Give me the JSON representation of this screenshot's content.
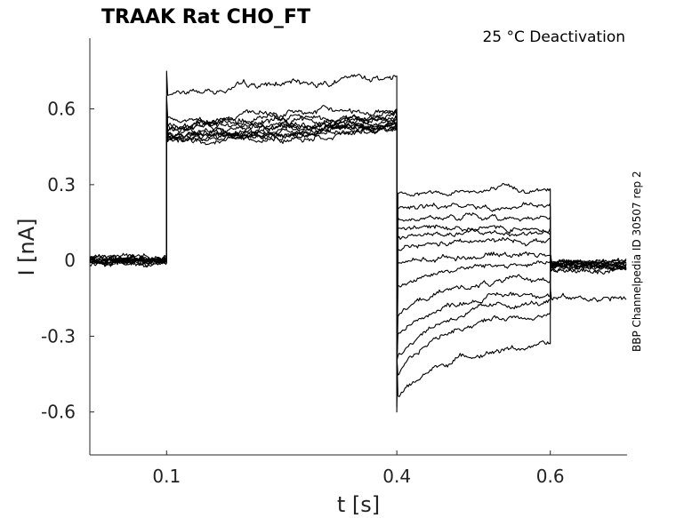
{
  "chart_data": {
    "type": "line",
    "title": "TRAAK  Rat  CHO_FT",
    "annotation": "25 °C  Deactivation",
    "side_label": "BBP Channelpedia ID 30507 rep 2",
    "xlabel": "t [s]",
    "ylabel": "I [nA]",
    "xlim": [
      0.0,
      0.7
    ],
    "ylim": [
      -0.77,
      0.88
    ],
    "xticks": [
      0.1,
      0.4,
      0.6
    ],
    "xtick_labels": [
      "0.1",
      "0.4",
      "0.6"
    ],
    "yticks": [
      0.6,
      0.3,
      0,
      -0.3,
      -0.6
    ],
    "ytick_labels": [
      "0.6",
      "0.3",
      "0",
      "-0.3",
      "-0.6"
    ],
    "grid": false,
    "line_color": "#000000",
    "protocol": {
      "hold_end": 0.1,
      "step_end": 0.4,
      "tail_end": 0.6
    },
    "series": [
      {
        "values": {
          "hold": 0.0,
          "step_start": 0.66,
          "step_end": 0.73,
          "tail_start": 0.27,
          "tail_end": 0.28,
          "post": -0.01
        }
      },
      {
        "values": {
          "hold": 0.0,
          "step_start": 0.56,
          "step_end": 0.6,
          "tail_start": 0.21,
          "tail_end": 0.21,
          "post": -0.02
        }
      },
      {
        "values": {
          "hold": 0.01,
          "step_start": 0.54,
          "step_end": 0.58,
          "tail_start": 0.17,
          "tail_end": 0.17,
          "post": -0.01
        }
      },
      {
        "values": {
          "hold": -0.01,
          "step_start": 0.53,
          "step_end": 0.57,
          "tail_start": 0.13,
          "tail_end": 0.13,
          "post": -0.02
        }
      },
      {
        "values": {
          "hold": 0.0,
          "step_start": 0.52,
          "step_end": 0.56,
          "tail_start": 0.09,
          "tail_end": 0.11,
          "post": -0.01
        }
      },
      {
        "values": {
          "hold": 0.01,
          "step_start": 0.51,
          "step_end": 0.55,
          "tail_start": 0.04,
          "tail_end": 0.08,
          "post": -0.02
        }
      },
      {
        "values": {
          "hold": 0.0,
          "step_start": 0.5,
          "step_end": 0.55,
          "tail_start": -0.02,
          "tail_end": 0.03,
          "post": -0.01
        }
      },
      {
        "values": {
          "hold": -0.01,
          "step_start": 0.5,
          "step_end": 0.54,
          "tail_start": -0.1,
          "tail_end": -0.01,
          "post": -0.02
        }
      },
      {
        "values": {
          "hold": 0.0,
          "step_start": 0.49,
          "step_end": 0.54,
          "tail_start": -0.22,
          "tail_end": -0.07,
          "post": -0.03
        }
      },
      {
        "values": {
          "hold": 0.01,
          "step_start": 0.48,
          "step_end": 0.53,
          "tail_start": -0.3,
          "tail_end": -0.12,
          "post": -0.02
        }
      },
      {
        "values": {
          "hold": 0.0,
          "step_start": 0.48,
          "step_end": 0.53,
          "tail_start": -0.38,
          "tail_end": -0.16,
          "post": -0.03
        }
      },
      {
        "values": {
          "hold": -0.01,
          "step_start": 0.47,
          "step_end": 0.52,
          "tail_start": -0.46,
          "tail_end": -0.2,
          "post": -0.15
        }
      },
      {
        "values": {
          "hold": 0.0,
          "step_start": 0.47,
          "step_end": 0.52,
          "tail_start": -0.55,
          "tail_end": -0.33,
          "post": -0.04
        }
      }
    ]
  }
}
